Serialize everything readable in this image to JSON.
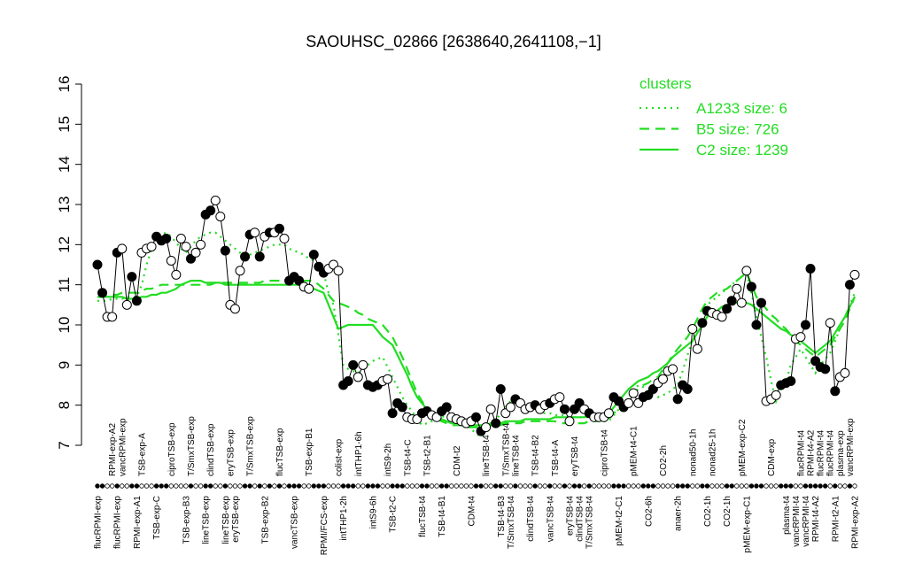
{
  "chart_data": {
    "type": "line",
    "title": "SAOUHSC_02866 [2638640,2641108,−1]",
    "ylim": [
      7,
      16
    ],
    "yticks": [
      7,
      8,
      9,
      10,
      11,
      12,
      13,
      14,
      15,
      16
    ],
    "legend_title": "clusters",
    "legend": "top-right",
    "point_color": "#000000",
    "categories": [
      "flucRPMI-exp",
      null,
      null,
      "RPMI-exp-A2",
      "flucRPMI-exp",
      "vancRPMI-exp",
      null,
      null,
      "RPMI-exp-A1",
      "TSB-exp-A",
      null,
      null,
      "TSB-exp-C",
      null,
      null,
      "ciproTSB-exp",
      null,
      null,
      "TSB-exp-B3",
      "T/SmxTSB-exp",
      null,
      null,
      "lineTSB-exp",
      "clindTSB-exp",
      null,
      null,
      "lineTSB-exp",
      "eryTSB-exp",
      "eryTSB-exp",
      null,
      null,
      "T/SmxTSB-exp",
      null,
      null,
      "TSB-exp-B2",
      null,
      null,
      "flucTSB-exp",
      null,
      null,
      "vancTSB-exp",
      null,
      null,
      "TSB-exp-B1",
      null,
      null,
      "RPMI/FCS-exp",
      null,
      null,
      "colist-exp",
      "intTHP1-2h",
      null,
      null,
      "intTHP1-6h",
      null,
      null,
      "intS9-6h",
      null,
      null,
      "intS9-2h",
      "TSB-t2-C",
      null,
      null,
      "TSB-t4-C",
      null,
      null,
      "flucTSB-t4",
      "TSB-t2-B1",
      null,
      null,
      "TSB-t4-B1",
      null,
      null,
      "CDM-t2",
      null,
      null,
      "CDM-t4",
      null,
      null,
      "lineTSB-t4",
      null,
      null,
      "TSB-t4-B3",
      "T/SmxTSB-t4",
      "T/SmxTSB-t4",
      "lineTSB-t4",
      null,
      null,
      "clindTSB-t4",
      "TSB-t4-B2",
      null,
      null,
      "vancTSB-t4",
      "TSB-t4-A",
      null,
      null,
      "eryTSB-t4",
      "eryTSB-t4",
      "clindTSB-t4",
      null,
      "T/SmxTSB-t4",
      null,
      null,
      "ciproTSB-t4",
      null,
      null,
      "pMEM-t2-C1",
      null,
      null,
      "pMEM-t4-C1",
      null,
      null,
      "CO2-6h",
      null,
      null,
      "CO2-2h",
      null,
      null,
      "anaer-2h",
      null,
      null,
      "nonad50-1h",
      null,
      null,
      "CO2-1h",
      "nonad25-1h",
      null,
      null,
      "CO2-1h",
      null,
      null,
      "pMEM-exp-C2",
      "pMEM-exp-C1",
      null,
      null,
      null,
      null,
      "CDM-exp",
      null,
      null,
      "plasma-t4",
      null,
      "vancRPMI-t4",
      "flucRPMI-t4",
      "vancRPMI-t4",
      "RPMI-t4-A2",
      "RPMI-t4-A2",
      "flucRPMI-t4",
      null,
      "flucRPMI-t4",
      "RPMI-t2-A1",
      "plasma-exp",
      null,
      "vancRPMI-exp",
      "RPMI-exp-A2"
    ],
    "values": [
      11.5,
      10.8,
      10.2,
      10.2,
      11.8,
      11.9,
      10.5,
      11.2,
      10.6,
      11.8,
      11.9,
      11.95,
      12.2,
      12.1,
      12.15,
      11.6,
      11.25,
      12.15,
      11.95,
      11.65,
      11.8,
      12.0,
      12.75,
      12.85,
      13.1,
      12.7,
      11.85,
      10.5,
      10.4,
      11.35,
      11.7,
      12.25,
      12.3,
      11.7,
      12.2,
      12.3,
      12.3,
      12.4,
      12.15,
      11.1,
      11.2,
      11.1,
      10.95,
      10.9,
      11.75,
      11.45,
      11.3,
      11.4,
      11.5,
      11.35,
      8.5,
      8.6,
      9.0,
      8.7,
      9.0,
      8.5,
      8.45,
      8.5,
      8.6,
      8.65,
      7.8,
      8.05,
      7.95,
      7.7,
      7.65,
      7.65,
      7.8,
      7.85,
      7.75,
      7.7,
      7.85,
      7.95,
      7.7,
      7.65,
      7.6,
      7.55,
      7.6,
      7.7,
      7.35,
      7.45,
      7.9,
      7.55,
      8.4,
      7.8,
      7.95,
      8.15,
      8.05,
      7.9,
      7.95,
      8.0,
      7.9,
      8.0,
      8.05,
      8.15,
      8.2,
      7.9,
      7.6,
      7.9,
      8.05,
      7.9,
      7.8,
      7.7,
      7.7,
      7.7,
      7.8,
      8.2,
      8.1,
      7.95,
      8.05,
      8.3,
      8.05,
      8.2,
      8.25,
      8.4,
      8.55,
      8.65,
      8.85,
      8.9,
      8.15,
      8.5,
      8.4,
      9.9,
      9.4,
      10.05,
      10.35,
      10.3,
      10.25,
      10.2,
      10.4,
      10.6,
      10.9,
      10.55,
      11.35,
      10.95,
      10.0,
      10.55,
      8.1,
      8.15,
      8.25,
      8.5,
      8.55,
      8.6,
      9.65,
      9.7,
      10.0,
      11.4,
      9.1,
      8.95,
      8.9,
      10.05,
      8.35,
      8.7,
      8.8,
      11.0,
      11.25
    ],
    "point_filled": [
      true,
      true,
      false,
      false,
      true,
      false,
      false,
      true,
      true,
      false,
      false,
      false,
      true,
      true,
      true,
      false,
      false,
      false,
      false,
      true,
      false,
      false,
      true,
      true,
      false,
      false,
      true,
      false,
      false,
      false,
      true,
      true,
      false,
      true,
      false,
      true,
      false,
      true,
      false,
      true,
      true,
      true,
      false,
      false,
      true,
      true,
      true,
      false,
      false,
      false,
      true,
      true,
      true,
      false,
      false,
      true,
      true,
      true,
      false,
      false,
      true,
      true,
      true,
      false,
      false,
      false,
      true,
      true,
      false,
      false,
      true,
      true,
      false,
      false,
      false,
      false,
      false,
      true,
      true,
      false,
      false,
      true,
      true,
      false,
      false,
      true,
      false,
      false,
      false,
      true,
      false,
      false,
      true,
      false,
      false,
      true,
      false,
      true,
      true,
      false,
      true,
      false,
      false,
      false,
      false,
      true,
      true,
      true,
      false,
      false,
      false,
      true,
      true,
      true,
      false,
      false,
      false,
      false,
      true,
      true,
      true,
      false,
      false,
      true,
      true,
      false,
      false,
      false,
      true,
      true,
      false,
      false,
      false,
      true,
      true,
      true,
      false,
      false,
      false,
      true,
      true,
      true,
      false,
      false,
      true,
      true,
      true,
      true,
      true,
      false,
      true,
      false,
      false,
      true,
      false
    ],
    "series": [
      {
        "name": "A1233 size: 6",
        "color": "#22dd22",
        "line_style": "dotted",
        "values": [
          10.6,
          10.6,
          10.6,
          10.65,
          10.65,
          10.65,
          10.7,
          10.7,
          10.7,
          11.0,
          11.5,
          11.9,
          12.2,
          12.25,
          12.3,
          12.2,
          12.05,
          11.9,
          11.8,
          11.95,
          12.1,
          12.2,
          12.25,
          12.3,
          12.3,
          12.2,
          12.1,
          12.0,
          11.9,
          11.8,
          11.7,
          11.75,
          11.8,
          11.85,
          11.9,
          11.95,
          12.0,
          12.0,
          12.0,
          11.9,
          11.85,
          11.8,
          11.75,
          11.65,
          11.6,
          11.5,
          11.3,
          10.8,
          10.5,
          9.75,
          9.0,
          8.9,
          8.85,
          8.8,
          8.9,
          9.0,
          9.1,
          9.15,
          9.2,
          8.95,
          8.7,
          8.45,
          8.2,
          8.0,
          7.85,
          7.65,
          7.5,
          7.55,
          7.6,
          7.65,
          7.7,
          7.75,
          7.8,
          7.7,
          7.6,
          7.5,
          7.4,
          7.3,
          7.2,
          7.35,
          7.5,
          7.6,
          7.8,
          7.95,
          8.1,
          8.05,
          8.0,
          7.95,
          7.9,
          7.85,
          7.8,
          7.8,
          7.8,
          7.75,
          7.75,
          7.75,
          7.7,
          7.7,
          7.7,
          7.7,
          7.7,
          7.65,
          7.65,
          7.6,
          7.6,
          7.75,
          7.9,
          8.05,
          8.2,
          8.35,
          8.5,
          8.45,
          8.35,
          8.3,
          8.2,
          8.25,
          8.3,
          8.4,
          8.5,
          8.85,
          9.25,
          9.6,
          9.9,
          10.2,
          10.5,
          10.6,
          10.7,
          10.8,
          10.9,
          11.0,
          11.1,
          11.2,
          11.3,
          10.8,
          10.2,
          9.7,
          9.2,
          8.6,
          8.1,
          8.4,
          8.6,
          9.0,
          9.2,
          9.4,
          9.2,
          9.0,
          8.8,
          9.0,
          9.15,
          9.3,
          9.6,
          9.9,
          10.2,
          10.5,
          10.8
        ]
      },
      {
        "name": "B5 size: 726",
        "color": "#22dd22",
        "line_style": "dashed",
        "values": [
          10.7,
          10.7,
          10.75,
          10.75,
          10.75,
          10.8,
          10.8,
          10.8,
          10.8,
          10.85,
          10.9,
          10.9,
          10.95,
          11.0,
          11.0,
          11.0,
          11.0,
          11.0,
          11.0,
          11.0,
          11.0,
          11.0,
          11.0,
          11.0,
          11.05,
          11.05,
          11.05,
          11.05,
          11.05,
          11.05,
          11.05,
          11.05,
          11.05,
          11.05,
          11.1,
          11.1,
          11.1,
          11.1,
          11.1,
          11.1,
          11.1,
          11.1,
          11.1,
          11.1,
          11.1,
          11.0,
          10.9,
          10.75,
          10.6,
          10.55,
          10.5,
          10.45,
          10.4,
          10.3,
          10.25,
          10.15,
          10.1,
          10.05,
          10.0,
          9.85,
          9.7,
          9.45,
          9.2,
          8.9,
          8.6,
          8.3,
          8.1,
          7.9,
          7.7,
          7.65,
          7.6,
          7.55,
          7.5,
          7.5,
          7.5,
          7.45,
          7.45,
          7.45,
          7.45,
          7.45,
          7.5,
          7.5,
          7.5,
          7.55,
          7.55,
          7.55,
          7.55,
          7.6,
          7.6,
          7.6,
          7.6,
          7.6,
          7.6,
          7.6,
          7.55,
          7.55,
          7.55,
          7.55,
          7.55,
          7.55,
          7.6,
          7.6,
          7.6,
          7.65,
          7.65,
          7.8,
          7.9,
          8.05,
          8.15,
          8.3,
          8.4,
          8.5,
          8.55,
          8.65,
          8.7,
          8.9,
          9.05,
          9.25,
          9.4,
          9.55,
          9.7,
          9.9,
          10.15,
          10.4,
          10.6,
          10.7,
          10.8,
          10.85,
          10.9,
          11.0,
          11.1,
          11.2,
          11.3,
          11.0,
          10.7,
          10.55,
          10.4,
          10.25,
          10.15,
          10.0,
          9.9,
          9.75,
          9.6,
          9.5,
          9.4,
          9.3,
          9.2,
          9.3,
          9.4,
          9.5,
          9.7,
          9.9,
          10.1,
          10.4,
          10.7
        ]
      },
      {
        "name": "C2 size: 1239",
        "color": "#22dd22",
        "line_style": "solid",
        "values": [
          10.7,
          10.7,
          10.7,
          10.7,
          10.7,
          10.7,
          10.65,
          10.65,
          10.65,
          10.7,
          10.7,
          10.75,
          10.75,
          10.8,
          10.8,
          10.85,
          10.9,
          11.0,
          11.05,
          11.1,
          11.1,
          11.1,
          11.05,
          11.05,
          11.05,
          11.05,
          11.0,
          11.0,
          11.0,
          11.0,
          11.0,
          11.0,
          11.0,
          11.0,
          11.0,
          11.0,
          11.0,
          11.0,
          11.0,
          11.0,
          11.0,
          11.0,
          10.95,
          10.9,
          10.9,
          10.85,
          10.8,
          10.5,
          10.2,
          9.9,
          9.95,
          10.0,
          10.0,
          10.0,
          10.0,
          10.0,
          10.0,
          9.85,
          9.7,
          9.6,
          9.5,
          9.25,
          9.0,
          8.75,
          8.45,
          8.2,
          8.05,
          7.9,
          7.8,
          7.75,
          7.65,
          7.6,
          7.55,
          7.55,
          7.55,
          7.5,
          7.5,
          7.5,
          7.5,
          7.5,
          7.55,
          7.55,
          7.55,
          7.6,
          7.6,
          7.6,
          7.6,
          7.65,
          7.65,
          7.65,
          7.65,
          7.65,
          7.65,
          7.7,
          7.7,
          7.7,
          7.7,
          7.7,
          7.7,
          7.7,
          7.75,
          7.75,
          7.75,
          7.8,
          7.8,
          7.95,
          8.1,
          8.25,
          8.4,
          8.5,
          8.6,
          8.65,
          8.7,
          8.8,
          8.85,
          8.95,
          9.05,
          9.2,
          9.3,
          9.4,
          9.5,
          9.6,
          9.8,
          10.0,
          10.2,
          10.3,
          10.35,
          10.45,
          10.5,
          10.55,
          10.55,
          10.6,
          10.55,
          10.5,
          10.4,
          10.3,
          10.2,
          10.1,
          10.0,
          9.9,
          9.85,
          9.75,
          9.7,
          9.6,
          9.5,
          9.4,
          9.3,
          9.4,
          9.5,
          9.6,
          9.8,
          10.0,
          10.2,
          10.45,
          10.7
        ]
      }
    ]
  }
}
